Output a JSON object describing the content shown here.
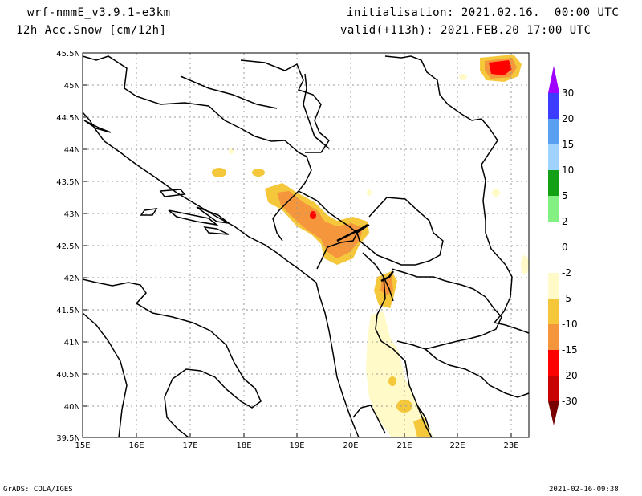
{
  "header": {
    "model": "wrf-nmmE_v3.9.1-e3km",
    "field": "12h Acc.Snow [cm/12h]",
    "init": "initialisation: 2021.02.16.  00:00 UTC",
    "valid": "valid(+113h): 2021.FEB.20 17:00 UTC"
  },
  "footer": {
    "credit": "GrADS: COLA/IGES",
    "timestamp": "2021-02-16-09:38"
  },
  "axes": {
    "lat_labels": [
      "45.5N",
      "45N",
      "44.5N",
      "44N",
      "43.5N",
      "43N",
      "42.5N",
      "42N",
      "41.5N",
      "41N",
      "40.5N",
      "40N",
      "39.5N"
    ],
    "lon_labels": [
      "15E",
      "16E",
      "17E",
      "18E",
      "19E",
      "20E",
      "21E",
      "22E",
      "23E"
    ]
  },
  "colorbar": {
    "labels": [
      "30",
      "20",
      "15",
      "10",
      "5",
      "2",
      "0",
      "-2",
      "-5",
      "-10",
      "-15",
      "-20",
      "-30"
    ],
    "colors": [
      "#3c3cff",
      "#5aa0f0",
      "#a0d2ff",
      "#14a014",
      "#82f082",
      "#ffffff",
      "#ffffff",
      "#fffac8",
      "#f5c83c",
      "#f5963c",
      "#ff0000",
      "#c80000",
      "#a00000"
    ],
    "top_color": "#a000ff",
    "bottom_color": "#780000"
  }
}
